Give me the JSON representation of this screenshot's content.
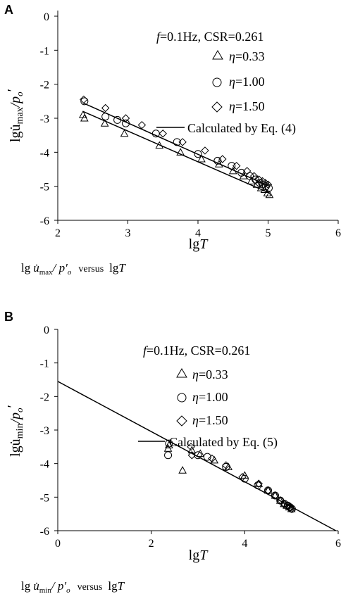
{
  "panels": [
    {
      "letter": "A",
      "ylabel_main": "lgu̇",
      "ylabel_sub": "max",
      "ylabel_tail": "/p",
      "ylabel_sub2": "o",
      "ylabel_prime": "′",
      "xlabel_main": "lg",
      "xlabel_italic": "T",
      "legend_header_f": "f",
      "legend_header_rest": "=0.1Hz,  CSR=0.261",
      "legend_items": [
        {
          "eta": "η",
          "text": "=0.33"
        },
        {
          "eta": "η",
          "text": "=1.00"
        },
        {
          "eta": "η",
          "text": "=1.50"
        }
      ],
      "legend_line_label": "Calculated by Eq. (4)",
      "caption_lg": "lg",
      "caption_u": "u̇",
      "caption_sub": "max",
      "caption_p": "/ p′",
      "caption_o": "o",
      "caption_versus": "versus",
      "caption_lgT": "lg",
      "caption_T": "T"
    },
    {
      "letter": "B",
      "ylabel_main": "lgu̇",
      "ylabel_sub": "min",
      "ylabel_tail": "/p",
      "ylabel_sub2": "o",
      "ylabel_prime": "′",
      "xlabel_main": "lg",
      "xlabel_italic": "T",
      "legend_header_f": "f",
      "legend_header_rest": "=0.1Hz,  CSR=0.261",
      "legend_items": [
        {
          "eta": "η",
          "text": "=0.33"
        },
        {
          "eta": "η",
          "text": "=1.00"
        },
        {
          "eta": "η",
          "text": "=1.50"
        }
      ],
      "legend_line_label": "Calculated by Eq. (5)",
      "caption_lg": "lg",
      "caption_u": "u̇",
      "caption_sub": "min",
      "caption_p": "/ p′",
      "caption_o": "o",
      "caption_versus": "versus",
      "caption_lgT": "lg",
      "caption_T": "T"
    }
  ],
  "chart_data": [
    {
      "type": "scatter",
      "xlim": [
        2,
        6
      ],
      "ylim": [
        -6,
        0
      ],
      "xticks": [
        "2",
        "3",
        "4",
        "5",
        "6"
      ],
      "yticks": [
        "0",
        "-1",
        "-2",
        "-3",
        "-4",
        "-5",
        "-6"
      ],
      "xtick_values": [
        2,
        3,
        4,
        5,
        6
      ],
      "ytick_values": [
        0,
        -1,
        -2,
        -3,
        -4,
        -5,
        -6
      ],
      "series": [
        {
          "name": "η=0.33",
          "marker": "triangle",
          "x": [
            2.36,
            2.38,
            2.67,
            2.95,
            3.45,
            3.75,
            4.05,
            4.3,
            4.5,
            4.65,
            4.76,
            4.84,
            4.9,
            4.95,
            4.99,
            5.02
          ],
          "y": [
            -2.9,
            -3.0,
            -3.15,
            -3.45,
            -3.8,
            -4.0,
            -4.2,
            -4.35,
            -4.55,
            -4.7,
            -4.85,
            -4.95,
            -5.05,
            -5.1,
            -5.2,
            -5.25
          ]
        },
        {
          "name": "η=1.00",
          "marker": "circle",
          "x": [
            2.38,
            2.68,
            2.85,
            2.97,
            3.4,
            3.7,
            4.0,
            4.28,
            4.48,
            4.62,
            4.74,
            4.82,
            4.88,
            4.93,
            4.97,
            5.01
          ],
          "y": [
            -2.5,
            -2.95,
            -3.05,
            -3.15,
            -3.45,
            -3.7,
            -4.05,
            -4.25,
            -4.4,
            -4.6,
            -4.7,
            -4.8,
            -4.9,
            -4.95,
            -5.0,
            -5.05
          ]
        },
        {
          "name": "η=1.50",
          "marker": "diamond",
          "x": [
            2.37,
            2.68,
            2.97,
            3.2,
            3.5,
            3.78,
            4.1,
            4.35,
            4.55,
            4.7,
            4.8,
            4.87,
            4.92,
            4.96,
            5.0
          ],
          "y": [
            -2.45,
            -2.7,
            -3.0,
            -3.2,
            -3.45,
            -3.7,
            -3.95,
            -4.2,
            -4.4,
            -4.55,
            -4.7,
            -4.8,
            -4.85,
            -4.9,
            -4.95
          ]
        }
      ],
      "fit_lines": [
        {
          "x": [
            2.36,
            5.02
          ],
          "y": [
            -2.55,
            -5.0
          ]
        },
        {
          "x": [
            2.36,
            5.02
          ],
          "y": [
            -2.8,
            -5.2
          ]
        }
      ],
      "ylabel": "lgu̇max/po′",
      "xlabel": "lgT",
      "legend": [
        "η=0.33",
        "η=1.00",
        "η=1.50",
        "Calculated by Eq. (4)"
      ]
    },
    {
      "type": "scatter",
      "xlim": [
        0,
        6
      ],
      "ylim": [
        -6,
        0
      ],
      "xticks": [
        "0",
        "2",
        "4",
        "6"
      ],
      "yticks": [
        "0",
        "-1",
        "-2",
        "-3",
        "-4",
        "-5",
        "-6"
      ],
      "xtick_values": [
        0,
        2,
        4,
        6
      ],
      "ytick_values": [
        0,
        -1,
        -2,
        -3,
        -4,
        -5,
        -6
      ],
      "series": [
        {
          "name": "η=0.33",
          "marker": "triangle",
          "x": [
            2.36,
            2.38,
            2.67,
            2.87,
            3.05,
            3.35,
            3.65,
            4.0,
            4.3,
            4.5,
            4.65,
            4.76,
            4.84,
            4.9,
            4.95,
            5.0
          ],
          "y": [
            -3.55,
            -3.45,
            -4.2,
            -3.6,
            -3.7,
            -3.9,
            -4.1,
            -4.35,
            -4.6,
            -4.8,
            -4.95,
            -5.1,
            -5.2,
            -5.25,
            -5.3,
            -5.35
          ]
        },
        {
          "name": "η=1.00",
          "marker": "circle",
          "x": [
            2.36,
            2.38,
            3.0,
            3.2,
            3.6,
            4.0,
            4.28,
            4.5,
            4.65,
            4.76,
            4.85,
            4.92,
            4.97,
            5.01
          ],
          "y": [
            -3.75,
            -3.4,
            -3.75,
            -3.8,
            -4.1,
            -4.45,
            -4.65,
            -4.8,
            -4.95,
            -5.1,
            -5.2,
            -5.25,
            -5.3,
            -5.35
          ]
        },
        {
          "name": "η=1.50",
          "marker": "diamond",
          "x": [
            2.85,
            2.87,
            3.3,
            3.6,
            3.95,
            4.3,
            4.5,
            4.65,
            4.77,
            4.85,
            4.92,
            4.97,
            5.0
          ],
          "y": [
            -3.5,
            -3.75,
            -3.85,
            -4.05,
            -4.4,
            -4.6,
            -4.8,
            -4.95,
            -5.1,
            -5.2,
            -5.25,
            -5.3,
            -5.35
          ]
        }
      ],
      "fit_lines": [
        {
          "x": [
            0,
            5.95
          ],
          "y": [
            -1.55,
            -6.0
          ]
        }
      ],
      "ylabel": "lgu̇min/po′",
      "xlabel": "lgT",
      "legend": [
        "η=0.33",
        "η=1.00",
        "η=1.50",
        "Calculated by Eq. (5)"
      ]
    }
  ]
}
